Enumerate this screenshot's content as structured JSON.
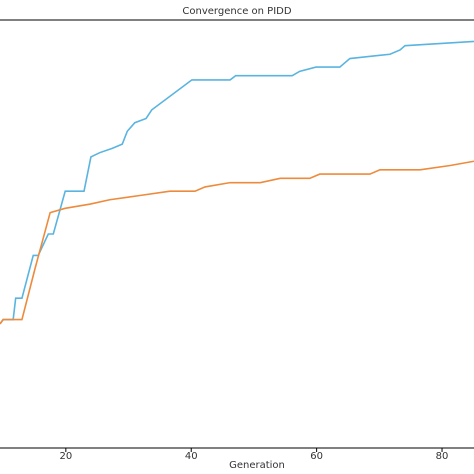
{
  "chart_data": {
    "type": "line",
    "title": "Convergence on PIDD",
    "x_label": "Generation",
    "xlim": [
      9.5,
      85.1
    ],
    "xticks": [
      20,
      40,
      60,
      80
    ],
    "ylim": [
      0,
      1
    ],
    "series": [
      {
        "color": "#5ab4e0",
        "x": [
          9.5,
          10,
          11.6,
          12,
          13,
          14.8,
          15.6,
          17.2,
          18,
          19.9,
          22.9,
          24,
          25.4,
          27.4,
          29,
          29.8,
          31,
          32.8,
          33.7,
          40.1,
          41.4,
          46.2,
          47.1,
          50.6,
          51.3,
          56.1,
          57.3,
          59.9,
          63.7,
          65.3,
          71.7,
          73.3,
          74.1,
          85.1
        ],
        "values": [
          0.29,
          0.3,
          0.3,
          0.35,
          0.35,
          0.45,
          0.45,
          0.5,
          0.5,
          0.6,
          0.6,
          0.68,
          0.69,
          0.7,
          0.71,
          0.74,
          0.76,
          0.77,
          0.79,
          0.86,
          0.86,
          0.86,
          0.87,
          0.87,
          0.87,
          0.87,
          0.88,
          0.89,
          0.89,
          0.91,
          0.92,
          0.93,
          0.94,
          0.95
        ]
      },
      {
        "color": "#ee8a3c",
        "x": [
          9.5,
          10,
          13,
          15.1,
          17.5,
          19.9,
          23.9,
          27.0,
          31.8,
          36.6,
          40.6,
          42.2,
          46.2,
          48.6,
          51.0,
          54.2,
          58.9,
          60.5,
          68.5,
          70.1,
          74.9,
          76.5,
          81.3,
          85.1
        ],
        "values": [
          0.29,
          0.3,
          0.3,
          0.42,
          0.55,
          0.56,
          0.57,
          0.58,
          0.59,
          0.6,
          0.6,
          0.61,
          0.62,
          0.62,
          0.62,
          0.63,
          0.63,
          0.64,
          0.64,
          0.65,
          0.65,
          0.65,
          0.66,
          0.67
        ]
      }
    ]
  }
}
